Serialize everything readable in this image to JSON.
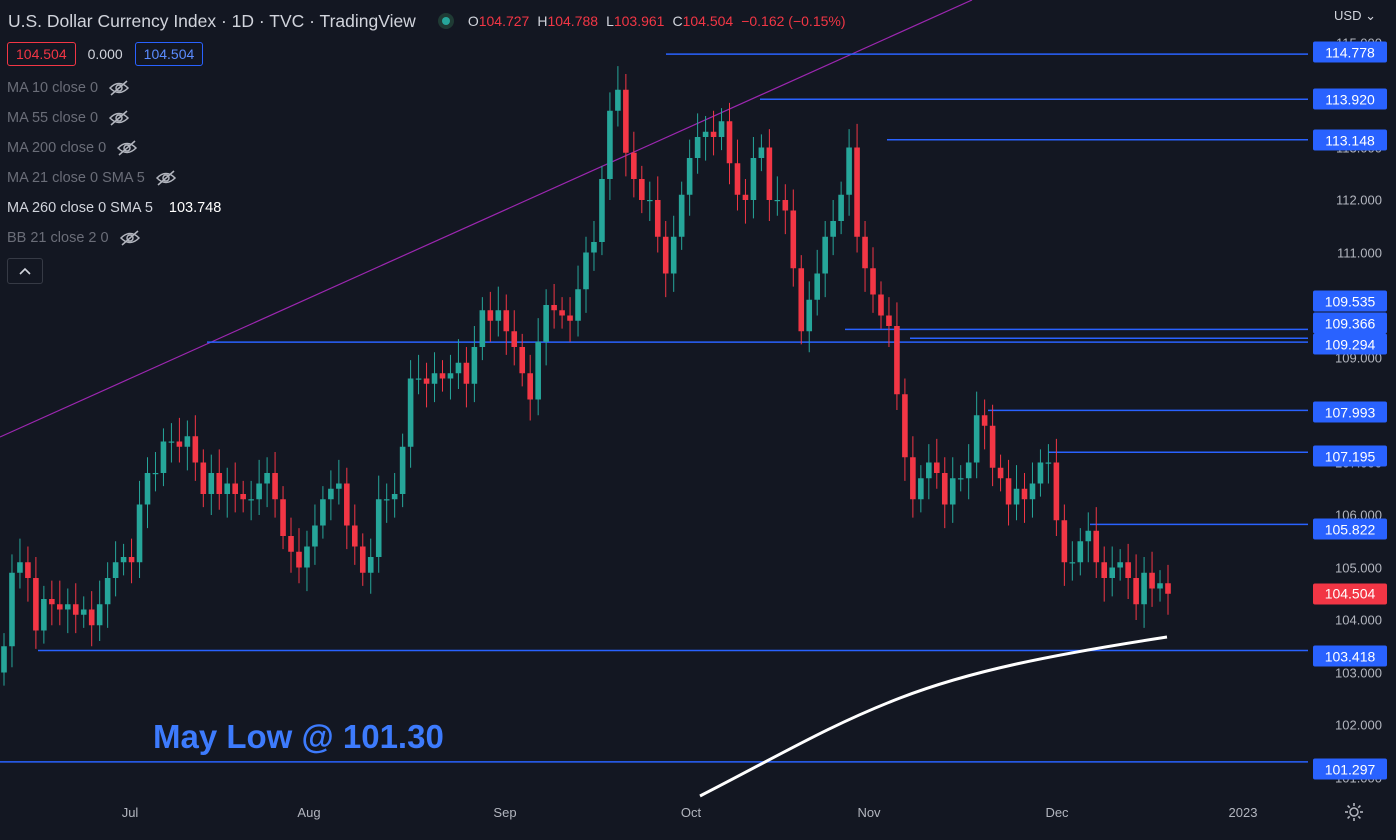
{
  "header": {
    "title": "U.S. Dollar Currency Index · 1D · TVC · TradingView",
    "ohlc": [
      {
        "k": "O",
        "v": "104.727"
      },
      {
        "k": "H",
        "v": "104.788"
      },
      {
        "k": "L",
        "v": "103.961"
      },
      {
        "k": "C",
        "v": "104.504"
      },
      {
        "k": "",
        "v": "−0.162 (−0.15%)"
      }
    ]
  },
  "price_row": {
    "bid": "104.504",
    "spread": "0.000",
    "ask": "104.504"
  },
  "indicators": [
    {
      "label": "MA 10 close 0",
      "hidden": true,
      "value": ""
    },
    {
      "label": "MA 55 close 0",
      "hidden": true,
      "value": ""
    },
    {
      "label": "MA 200 close 0",
      "hidden": true,
      "value": ""
    },
    {
      "label": "MA 21 close 0 SMA 5",
      "hidden": true,
      "value": ""
    },
    {
      "label": "MA 260 close 0 SMA 5",
      "hidden": false,
      "value": "103.748"
    },
    {
      "label": "BB 21 close 2 0",
      "hidden": true,
      "value": ""
    }
  ],
  "currency_selector": "USD",
  "annotation": "May Low @ 101.30",
  "colors": {
    "up": "#26a69a",
    "down": "#f23645",
    "level_line": "#2962ff",
    "trendline": "#9c27b0",
    "ma": "#ffffff"
  },
  "chart_data": {
    "type": "candlestick",
    "title": "U.S. Dollar Currency Index · 1D · TVC",
    "y_ticks": [
      "115.000",
      "113.000",
      "112.000",
      "111.000",
      "109.000",
      "107.000",
      "106.000",
      "105.000",
      "104.000",
      "103.000",
      "102.000",
      "101.000"
    ],
    "x_ticks": [
      "Jul",
      "Aug",
      "Sep",
      "Oct",
      "Nov",
      "Dec",
      "2023"
    ],
    "ylim": [
      100.9,
      115.2
    ],
    "last_price": 104.504,
    "horizontal_levels": [
      114.778,
      113.92,
      113.148,
      109.535,
      109.366,
      109.294,
      107.993,
      107.195,
      105.822,
      103.418,
      101.297
    ],
    "level_labels": [
      "114.778",
      "113.920",
      "113.148",
      "109.535",
      "109.366",
      "109.294",
      "107.993",
      "107.195",
      "105.822",
      "103.418",
      "101.297"
    ],
    "last_price_label": "104.504",
    "closes": [
      103.5,
      104.9,
      105.1,
      104.8,
      103.8,
      104.4,
      104.3,
      104.2,
      104.3,
      104.1,
      104.2,
      103.9,
      104.3,
      104.8,
      105.1,
      105.2,
      105.1,
      106.2,
      106.8,
      106.8,
      107.4,
      107.4,
      107.3,
      107.5,
      107.0,
      106.4,
      106.8,
      106.4,
      106.6,
      106.4,
      106.3,
      106.3,
      106.6,
      106.8,
      106.3,
      105.6,
      105.3,
      105.0,
      105.4,
      105.8,
      106.3,
      106.5,
      106.6,
      105.8,
      105.4,
      104.9,
      105.2,
      106.3,
      106.3,
      106.4,
      107.3,
      108.6,
      108.6,
      108.5,
      108.7,
      108.6,
      108.7,
      108.9,
      108.5,
      109.2,
      109.9,
      109.7,
      109.9,
      109.5,
      109.2,
      108.7,
      108.2,
      109.3,
      110.0,
      109.9,
      109.8,
      109.7,
      110.3,
      111.0,
      111.2,
      112.4,
      113.7,
      114.1,
      112.9,
      112.4,
      112.0,
      112.0,
      111.3,
      110.6,
      111.3,
      112.1,
      112.8,
      113.2,
      113.3,
      113.2,
      113.5,
      112.7,
      112.1,
      112.0,
      112.8,
      113.0,
      112.0,
      112.0,
      111.8,
      110.7,
      109.5,
      110.1,
      110.6,
      111.3,
      111.6,
      112.1,
      113.0,
      111.3,
      110.7,
      110.2,
      109.8,
      109.6,
      108.3,
      107.1,
      106.3,
      106.7,
      107.0,
      106.8,
      106.2,
      106.7,
      106.7,
      107.0,
      107.9,
      107.7,
      106.9,
      106.7,
      106.2,
      106.5,
      106.3,
      106.6,
      107.0,
      107.0,
      105.9,
      105.1,
      105.1,
      105.5,
      105.7,
      105.1,
      104.8,
      105.0,
      105.1,
      104.8,
      104.3,
      104.9,
      104.6,
      104.7,
      104.5
    ]
  }
}
